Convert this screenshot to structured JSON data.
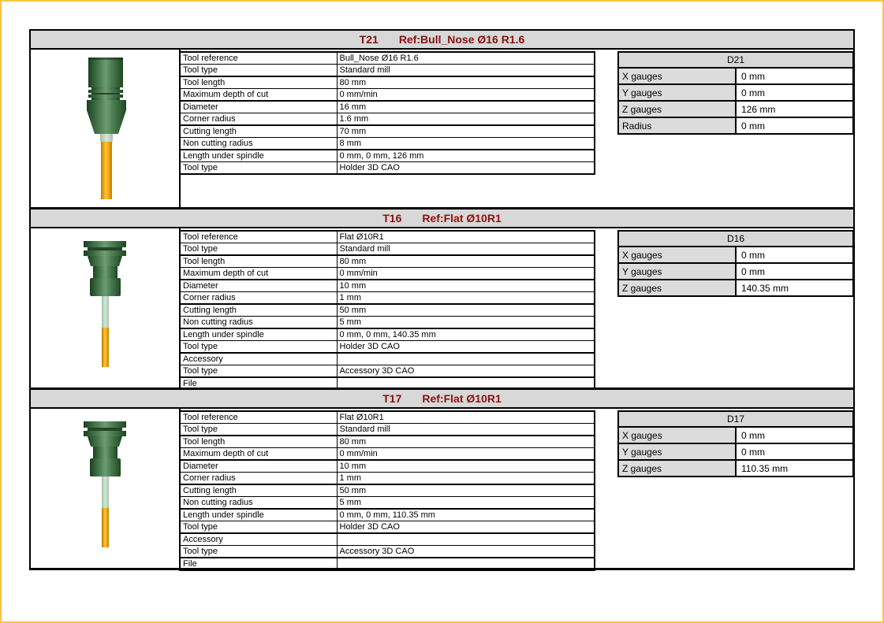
{
  "document": {
    "colors": {
      "accent_border": "#F6C544",
      "section_header_bg": "#D8D8D8",
      "gauge_label_bg": "#DCDCDC",
      "title_text": "#8B1010",
      "holder_green": "#3F7546",
      "shank_orange": "#F4A81C",
      "neck_jade": "#BFD8C4"
    },
    "sections": [
      {
        "tool_id": "T21",
        "ref_label": "Ref:Bull_Nose Ø16 R1.6",
        "tool_image": "bull-nose-holder-3d-render",
        "properties": [
          {
            "label": "Tool reference",
            "value": "Bull_Nose Ø16 R1.6"
          },
          {
            "label": "Tool type",
            "value": "Standard mill"
          },
          {
            "label": "Tool length",
            "value": "80 mm"
          },
          {
            "label": "Maximum depth of cut",
            "value": "0 mm/min"
          },
          {
            "label": "Diameter",
            "value": "16 mm"
          },
          {
            "label": "Corner radius",
            "value": "1.6 mm"
          },
          {
            "label": "Cutting length",
            "value": "70 mm"
          },
          {
            "label": "Non cutting radius",
            "value": "8 mm"
          },
          {
            "label": "Length under spindle",
            "value": "0 mm, 0 mm, 126 mm"
          },
          {
            "label": "Tool type",
            "value": "Holder 3D CAO"
          }
        ],
        "gauges": {
          "header": "D21",
          "rows": [
            {
              "label": "X gauges",
              "value": "0 mm"
            },
            {
              "label": "Y gauges",
              "value": "0 mm"
            },
            {
              "label": "Z gauges",
              "value": "126 mm"
            },
            {
              "label": "Radius",
              "value": "0 mm"
            }
          ]
        }
      },
      {
        "tool_id": "T16",
        "ref_label": "Ref:Flat Ø10R1",
        "tool_image": "flat-mill-holder-3d-render",
        "properties": [
          {
            "label": "Tool reference",
            "value": "Flat Ø10R1"
          },
          {
            "label": "Tool type",
            "value": "Standard mill"
          },
          {
            "label": "Tool length",
            "value": "80 mm"
          },
          {
            "label": "Maximum depth of cut",
            "value": "0 mm/min"
          },
          {
            "label": "Diameter",
            "value": "10 mm"
          },
          {
            "label": "Corner radius",
            "value": "1 mm"
          },
          {
            "label": "Cutting length",
            "value": "50 mm"
          },
          {
            "label": "Non cutting radius",
            "value": "5 mm"
          },
          {
            "label": "Length under spindle",
            "value": "0 mm, 0 mm, 140.35 mm"
          },
          {
            "label": "Tool type",
            "value": "Holder 3D CAO"
          },
          {
            "label": "Accessory",
            "value": ""
          },
          {
            "label": "Tool type",
            "value": "Accessory 3D CAO"
          },
          {
            "label": "File",
            "value": ""
          }
        ],
        "gauges": {
          "header": "D16",
          "rows": [
            {
              "label": "X gauges",
              "value": "0 mm"
            },
            {
              "label": "Y gauges",
              "value": "0 mm"
            },
            {
              "label": "Z gauges",
              "value": "140.35 mm"
            }
          ]
        }
      },
      {
        "tool_id": "T17",
        "ref_label": "Ref:Flat Ø10R1",
        "tool_image": "flat-mill-holder-3d-render",
        "properties": [
          {
            "label": "Tool reference",
            "value": "Flat Ø10R1"
          },
          {
            "label": "Tool type",
            "value": "Standard mill"
          },
          {
            "label": "Tool length",
            "value": "80 mm"
          },
          {
            "label": "Maximum depth of cut",
            "value": "0 mm/min"
          },
          {
            "label": "Diameter",
            "value": "10 mm"
          },
          {
            "label": "Corner radius",
            "value": "1 mm"
          },
          {
            "label": "Cutting length",
            "value": "50 mm"
          },
          {
            "label": "Non cutting radius",
            "value": "5 mm"
          },
          {
            "label": "Length under spindle",
            "value": "0 mm, 0 mm, 110.35 mm"
          },
          {
            "label": "Tool type",
            "value": "Holder 3D CAO"
          },
          {
            "label": "Accessory",
            "value": ""
          },
          {
            "label": "Tool type",
            "value": "Accessory 3D CAO"
          },
          {
            "label": "File",
            "value": ""
          }
        ],
        "gauges": {
          "header": "D17",
          "rows": [
            {
              "label": "X gauges",
              "value": "0 mm"
            },
            {
              "label": "Y gauges",
              "value": "0 mm"
            },
            {
              "label": "Z gauges",
              "value": "110.35 mm"
            }
          ]
        }
      }
    ]
  }
}
